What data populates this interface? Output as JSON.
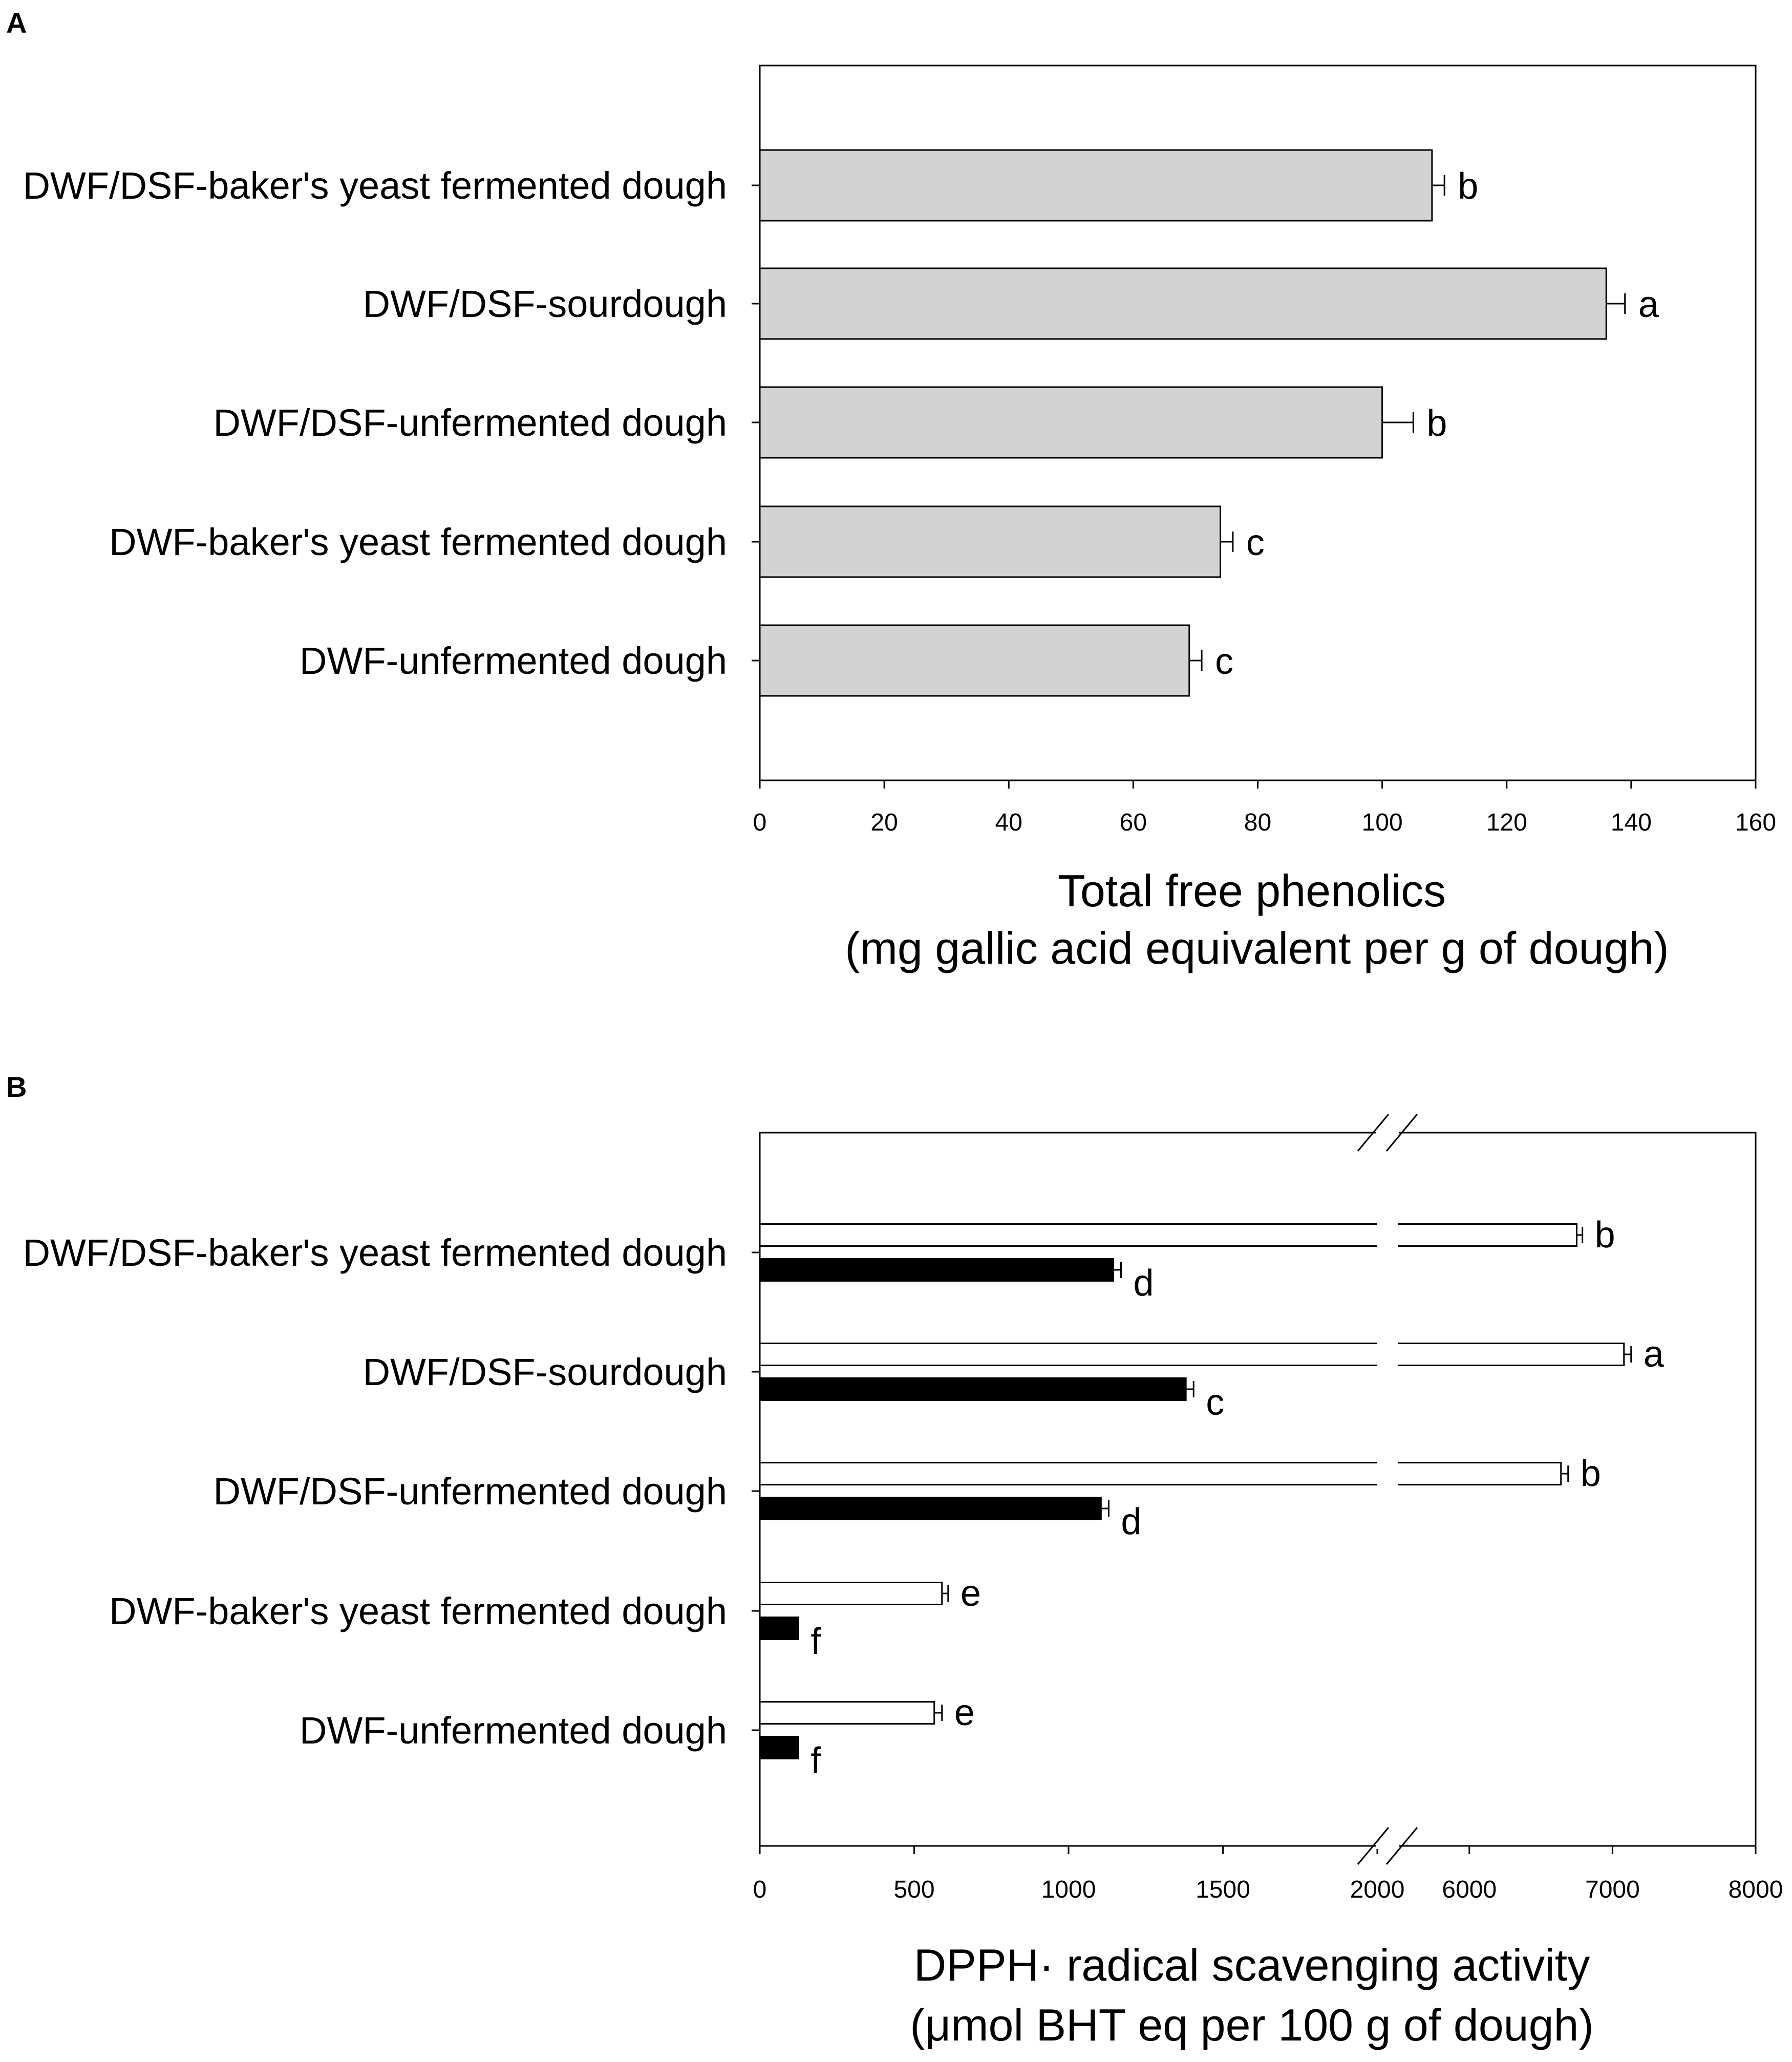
{
  "figure": {
    "panels": [
      {
        "label": "A",
        "categories": [
          "DWF/DSF-baker's yeast fermented dough",
          "DWF/DSF-sourdough",
          "DWF/DSF-unfermented dough",
          "DWF-baker's yeast fermented dough",
          "DWF-unfermented dough"
        ],
        "xticks": [
          "0",
          "20",
          "40",
          "60",
          "80",
          "100",
          "120",
          "140",
          "160"
        ],
        "xlabel_line1": "Total free phenolics",
        "xlabel_line2": "(mg gallic acid equivalent per g of dough)"
      },
      {
        "label": "B",
        "categories": [
          "DWF/DSF-baker's yeast fermented dough",
          "DWF/DSF-sourdough",
          "DWF/DSF-unfermented dough",
          "DWF-baker's yeast fermented dough",
          "DWF-unfermented dough"
        ],
        "xticks_low": [
          "0",
          "500",
          "1000",
          "1500",
          "2000"
        ],
        "xticks_high": [
          "6000",
          "7000",
          "8000"
        ],
        "xlabel_line1": "DPPH· radical scavenging activity",
        "xlabel_line2": "(μmol BHT eq per 100 g of dough)"
      }
    ]
  },
  "chart_data": [
    {
      "type": "bar",
      "orientation": "horizontal",
      "panel": "A",
      "title": "",
      "xlabel": "Total free phenolics (mg gallic acid equivalent per g of dough)",
      "ylabel": "",
      "xlim": [
        0,
        160
      ],
      "categories": [
        "DWF/DSF-baker's yeast fermented dough",
        "DWF/DSF-sourdough",
        "DWF/DSF-unfermented dough",
        "DWF-baker's yeast fermented dough",
        "DWF-unfermented dough"
      ],
      "values": [
        108,
        136,
        100,
        74,
        69
      ],
      "errors": [
        2,
        3,
        5,
        2,
        2
      ],
      "significance": [
        "b",
        "a",
        "b",
        "c",
        "c"
      ],
      "bar_color": "#d3d3d3"
    },
    {
      "type": "bar",
      "orientation": "horizontal",
      "panel": "B",
      "title": "",
      "xlabel": "DPPH· radical scavenging activity (μmol BHT eq per 100 g of dough)",
      "ylabel": "",
      "axis_break": [
        2000,
        5500
      ],
      "xlim": [
        0,
        8000
      ],
      "categories": [
        "DWF/DSF-baker's yeast fermented dough",
        "DWF/DSF-sourdough",
        "DWF/DSF-unfermented dough",
        "DWF-baker's yeast fermented dough",
        "DWF-unfermented dough"
      ],
      "series": [
        {
          "name": "white bars",
          "color": "#ffffff",
          "values": [
            6750,
            7080,
            6640,
            590,
            565
          ],
          "errors": [
            40,
            50,
            50,
            20,
            25
          ],
          "significance": [
            "b",
            "a",
            "b",
            "e",
            "e"
          ]
        },
        {
          "name": "black bars",
          "color": "#000000",
          "values": [
            1145,
            1380,
            1105,
            125,
            125
          ],
          "errors": [
            25,
            25,
            25,
            0,
            0
          ],
          "significance": [
            "d",
            "c",
            "d",
            "f",
            "f"
          ]
        }
      ]
    }
  ]
}
